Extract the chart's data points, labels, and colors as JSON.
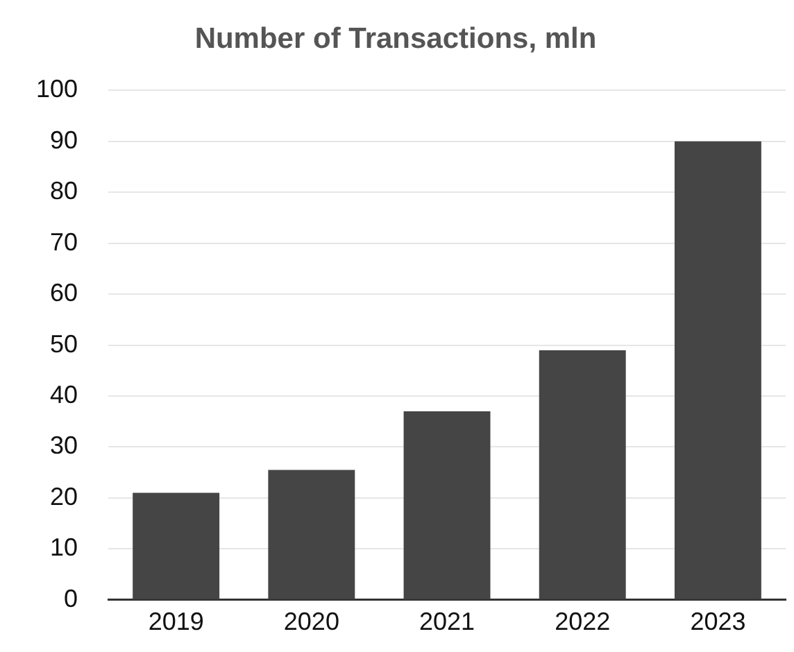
{
  "chart_data": {
    "type": "bar",
    "title": "Number of Transactions, mln",
    "categories": [
      "2019",
      "2020",
      "2021",
      "2022",
      "2023"
    ],
    "values": [
      21,
      25.5,
      37,
      49,
      90
    ],
    "color": "#454545",
    "ylim": [
      0,
      100
    ],
    "yticks": [
      0,
      10,
      20,
      30,
      40,
      50,
      60,
      70,
      80,
      90,
      100
    ],
    "grid": "y",
    "legend": false
  }
}
